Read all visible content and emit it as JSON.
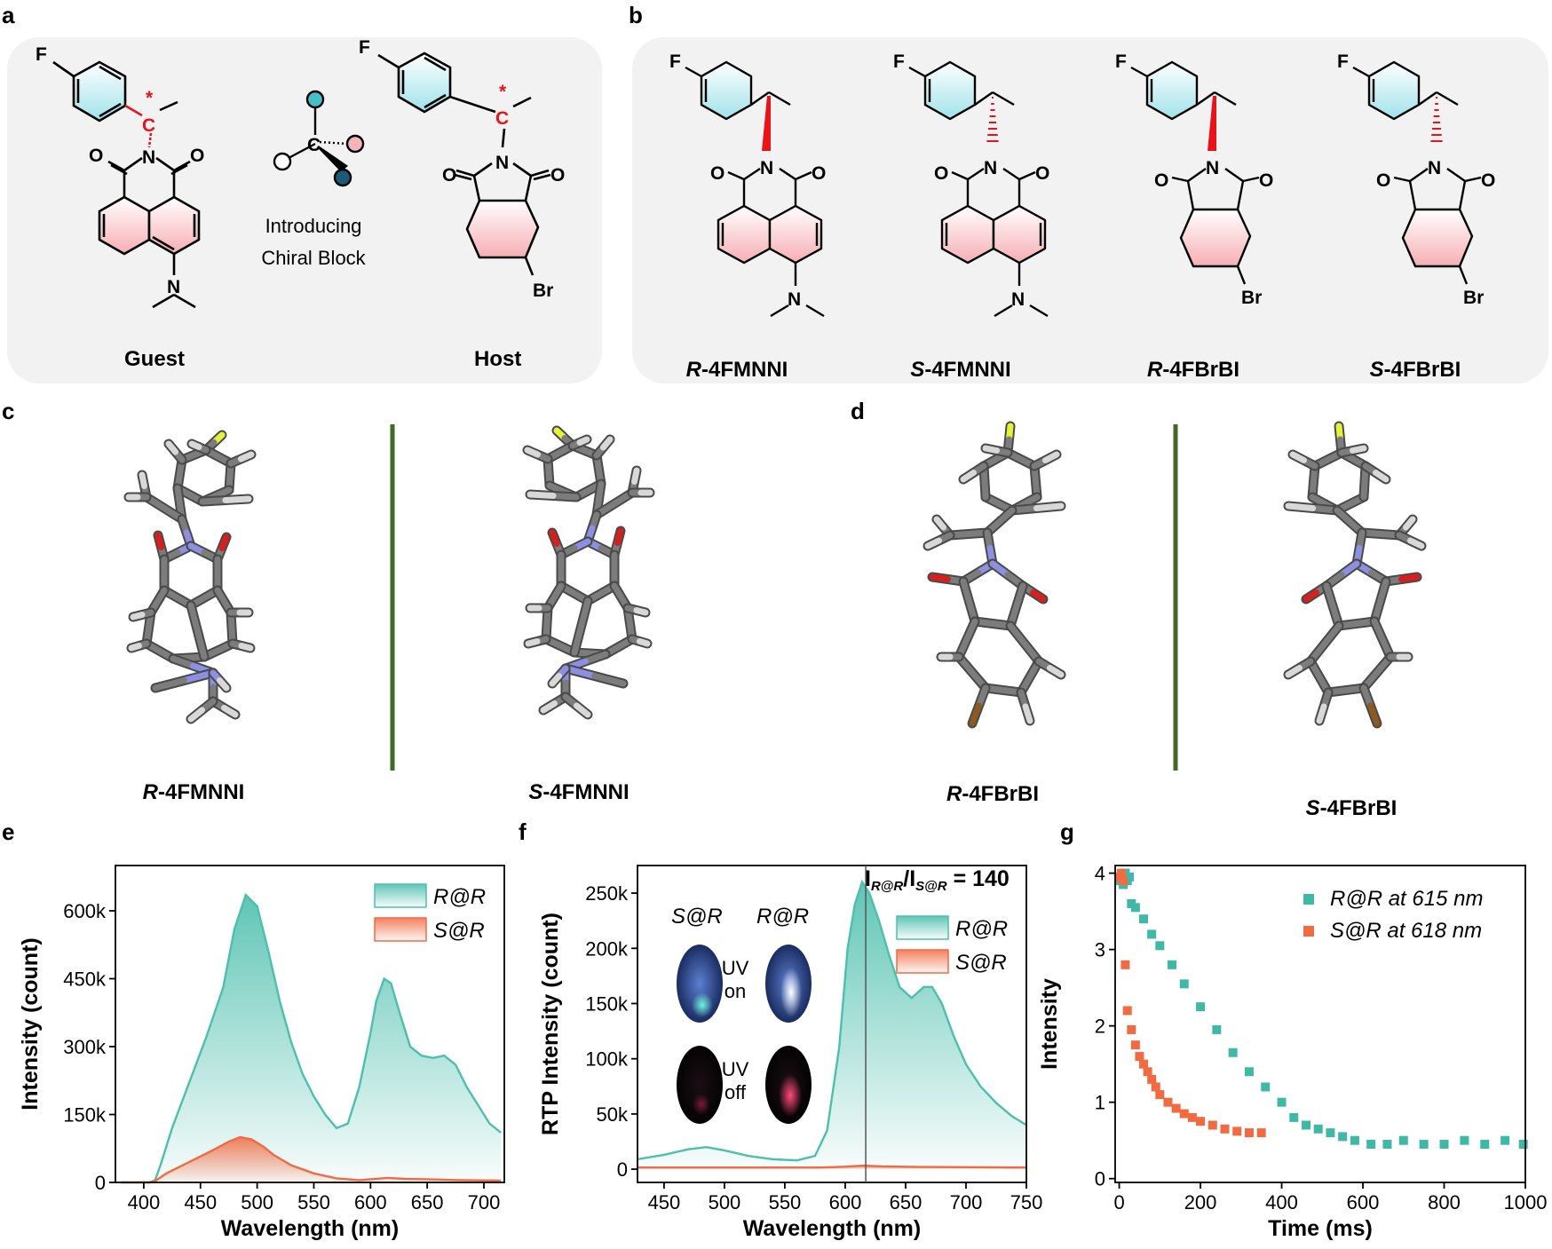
{
  "panels": {
    "a": {
      "label": "a",
      "guest_label": "Guest",
      "host_label": "Host",
      "center_text_line1": "Introducing",
      "center_text_line2": "Chiral Block",
      "atoms": {
        "F": "F",
        "N": "N",
        "O": "O",
        "C": "C",
        "Br": "Br",
        "star": "*"
      }
    },
    "b": {
      "label": "b",
      "molecules": [
        {
          "prefix": "R",
          "name": "-4FMNNI",
          "type": "naphthalimide",
          "wedge": "bold"
        },
        {
          "prefix": "S",
          "name": "-4FMNNI",
          "type": "naphthalimide",
          "wedge": "hash"
        },
        {
          "prefix": "R",
          "name": "-4FBrBI",
          "type": "phthalimide",
          "wedge": "bold"
        },
        {
          "prefix": "S",
          "name": "-4FBrBI",
          "type": "phthalimide",
          "wedge": "hash"
        }
      ]
    },
    "c": {
      "label": "c",
      "left_prefix": "R",
      "left_name": "-4FMNNI",
      "right_prefix": "S",
      "right_name": "-4FMNNI"
    },
    "d": {
      "label": "d",
      "left_prefix": "R",
      "left_name": "-4FBrBI",
      "right_prefix": "S",
      "right_name": "-4FBrBI"
    },
    "e": {
      "label": "e"
    },
    "f": {
      "label": "f",
      "ratio_text": "I",
      "ratio_sub1": "R@R",
      "ratio_mid": "/I",
      "ratio_sub2": "S@R",
      "ratio_value": " = 140",
      "inset": {
        "col1": "S@R",
        "col2": "R@R",
        "uv_on_1": "UV",
        "uv_on_2": "on",
        "uv_off_1": "UV",
        "uv_off_2": "off"
      }
    },
    "g": {
      "label": "g"
    }
  },
  "colors": {
    "teal": "#4dbfad",
    "orange": "#f26a42",
    "red": "#e8141a",
    "divider": "#3f6b23"
  },
  "chart_data": [
    {
      "id": "e",
      "type": "area",
      "xlabel": "Wavelength (nm)",
      "ylabel": "Intensity (count)",
      "xlim": [
        375,
        718
      ],
      "ylim": [
        0,
        700000
      ],
      "xticks": [
        400,
        450,
        500,
        550,
        600,
        650,
        700
      ],
      "yticks": [
        0,
        150000,
        300000,
        450000,
        600000
      ],
      "ytick_labels": [
        "0",
        "150k",
        "300k",
        "450k",
        "600k"
      ],
      "legend_position": "top-right",
      "series": [
        {
          "name": "R@R",
          "color": "#4dbfad",
          "x": [
            380,
            405,
            410,
            415,
            425,
            440,
            455,
            470,
            480,
            490,
            500,
            510,
            520,
            530,
            540,
            550,
            560,
            570,
            580,
            590,
            600,
            605,
            612,
            618,
            625,
            635,
            645,
            655,
            665,
            675,
            685,
            695,
            705,
            715
          ],
          "y": [
            0,
            0,
            5000,
            40000,
            120000,
            220000,
            320000,
            430000,
            560000,
            635000,
            610000,
            510000,
            400000,
            310000,
            240000,
            190000,
            150000,
            120000,
            130000,
            210000,
            330000,
            400000,
            450000,
            440000,
            380000,
            300000,
            280000,
            275000,
            280000,
            260000,
            210000,
            170000,
            130000,
            110000
          ]
        },
        {
          "name": "S@R",
          "color": "#f26a42",
          "x": [
            380,
            405,
            410,
            420,
            440,
            460,
            475,
            485,
            495,
            505,
            515,
            530,
            550,
            570,
            590,
            600,
            615,
            630,
            650,
            680,
            715
          ],
          "y": [
            0,
            0,
            3000,
            20000,
            45000,
            70000,
            90000,
            100000,
            95000,
            80000,
            60000,
            38000,
            20000,
            9000,
            5000,
            7000,
            10000,
            8000,
            7000,
            5000,
            4000
          ]
        }
      ]
    },
    {
      "id": "f",
      "type": "area",
      "xlabel": "Wavelength (nm)",
      "ylabel": "RTP Intensity (count)",
      "xlim": [
        428,
        750
      ],
      "ylim": [
        -12000,
        275000
      ],
      "xticks": [
        450,
        500,
        550,
        600,
        650,
        700,
        750
      ],
      "yticks": [
        0,
        50000,
        100000,
        150000,
        200000,
        250000
      ],
      "ytick_labels": [
        "0",
        "50k",
        "100k",
        "150k",
        "200k",
        "250k"
      ],
      "marker_line_x": 617,
      "legend_position": "right",
      "series": [
        {
          "name": "R@R",
          "color": "#4dbfad",
          "x": [
            428,
            450,
            470,
            485,
            500,
            520,
            540,
            560,
            575,
            585,
            595,
            602,
            608,
            614,
            620,
            628,
            636,
            645,
            655,
            665,
            672,
            680,
            690,
            700,
            712,
            725,
            738,
            750
          ],
          "y": [
            9000,
            13000,
            18000,
            20000,
            17000,
            12000,
            9000,
            8000,
            12000,
            35000,
            110000,
            200000,
            240000,
            260000,
            250000,
            225000,
            195000,
            165000,
            155000,
            165000,
            165000,
            150000,
            120000,
            95000,
            75000,
            60000,
            48000,
            40000
          ]
        },
        {
          "name": "S@R",
          "color": "#f26a42",
          "x": [
            428,
            500,
            580,
            600,
            615,
            630,
            660,
            700,
            750
          ],
          "y": [
            1500,
            1500,
            1500,
            2200,
            3200,
            2500,
            2000,
            1800,
            1500
          ]
        }
      ]
    },
    {
      "id": "g",
      "type": "scatter",
      "xlabel": "Time (ms)",
      "ylabel": "Intensity",
      "xlim": [
        -10,
        1000
      ],
      "ylim": [
        -0.05,
        4.1
      ],
      "xticks": [
        0,
        200,
        400,
        600,
        800,
        1000
      ],
      "yticks": [
        0,
        1,
        2,
        3,
        4
      ],
      "legend_position": "top-right",
      "series": [
        {
          "name": "R@R at 615 nm",
          "color": "#3fb8a6",
          "x": [
            0,
            5,
            10,
            15,
            20,
            25,
            30,
            40,
            60,
            80,
            100,
            130,
            160,
            200,
            240,
            280,
            320,
            360,
            400,
            430,
            460,
            490,
            520,
            550,
            580,
            620,
            660,
            700,
            750,
            800,
            850,
            900,
            950,
            995
          ],
          "y": [
            3.9,
            3.95,
            3.85,
            4.0,
            3.9,
            3.95,
            3.6,
            3.55,
            3.4,
            3.2,
            3.05,
            2.8,
            2.55,
            2.25,
            1.95,
            1.65,
            1.4,
            1.2,
            1.0,
            0.8,
            0.7,
            0.65,
            0.6,
            0.55,
            0.5,
            0.45,
            0.45,
            0.5,
            0.45,
            0.45,
            0.5,
            0.45,
            0.5,
            0.45
          ]
        },
        {
          "name": "S@R at 618 nm",
          "color": "#f26a42",
          "x": [
            0,
            5,
            10,
            15,
            20,
            30,
            40,
            50,
            60,
            70,
            80,
            90,
            100,
            120,
            140,
            160,
            180,
            200,
            230,
            260,
            290,
            320,
            350
          ],
          "y": [
            3.95,
            4.0,
            3.9,
            2.8,
            2.2,
            1.95,
            1.75,
            1.6,
            1.5,
            1.4,
            1.3,
            1.2,
            1.1,
            1.0,
            0.92,
            0.85,
            0.8,
            0.75,
            0.7,
            0.65,
            0.62,
            0.6,
            0.6
          ]
        }
      ]
    }
  ]
}
